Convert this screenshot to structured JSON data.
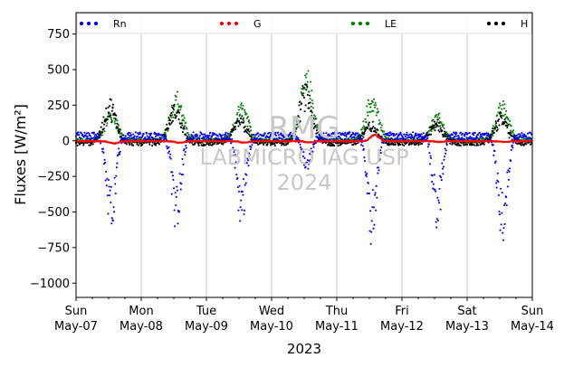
{
  "chart_data": {
    "type": "scatter",
    "xlabel": "2023",
    "ylabel": "Fluxes [W/m²]",
    "ylim": [
      -1100,
      900
    ],
    "xlim": [
      0,
      7
    ],
    "grid": "x",
    "legend_placement": "top",
    "yticks": [
      -1000,
      -750,
      -500,
      -250,
      0,
      250,
      500,
      750
    ],
    "xticks": [
      {
        "x": 0,
        "line1": "Sun",
        "line2": "May-07"
      },
      {
        "x": 1,
        "line1": "Mon",
        "line2": "May-08"
      },
      {
        "x": 2,
        "line1": "Tue",
        "line2": "May-09"
      },
      {
        "x": 3,
        "line1": "Wed",
        "line2": "May-10"
      },
      {
        "x": 4,
        "line1": "Thu",
        "line2": "May-11"
      },
      {
        "x": 5,
        "line1": "Fri",
        "line2": "May-12"
      },
      {
        "x": 6,
        "line1": "Sat",
        "line2": "May-13"
      },
      {
        "x": 7,
        "line1": "Sun",
        "line2": "May-14"
      }
    ],
    "watermark": {
      "line1": "RMG",
      "line2": "LABMICRO IAG USP",
      "line3": "2024"
    },
    "series": [
      {
        "name": "Rn",
        "color": "#0000ff",
        "day_min": [
          -680,
          -660,
          -650,
          -210,
          -760,
          -640,
          -770
        ]
      },
      {
        "name": "G",
        "color": "#ff0000",
        "day_min": [
          -15,
          -10,
          -10,
          -8,
          45,
          -5,
          -5
        ]
      },
      {
        "name": "LE",
        "color": "#008000",
        "day_max": [
          230,
          350,
          270,
          500,
          340,
          190,
          280
        ]
      },
      {
        "name": "H",
        "color": "#000000",
        "day_max": [
          300,
          270,
          180,
          420,
          130,
          150,
          200
        ]
      }
    ]
  }
}
